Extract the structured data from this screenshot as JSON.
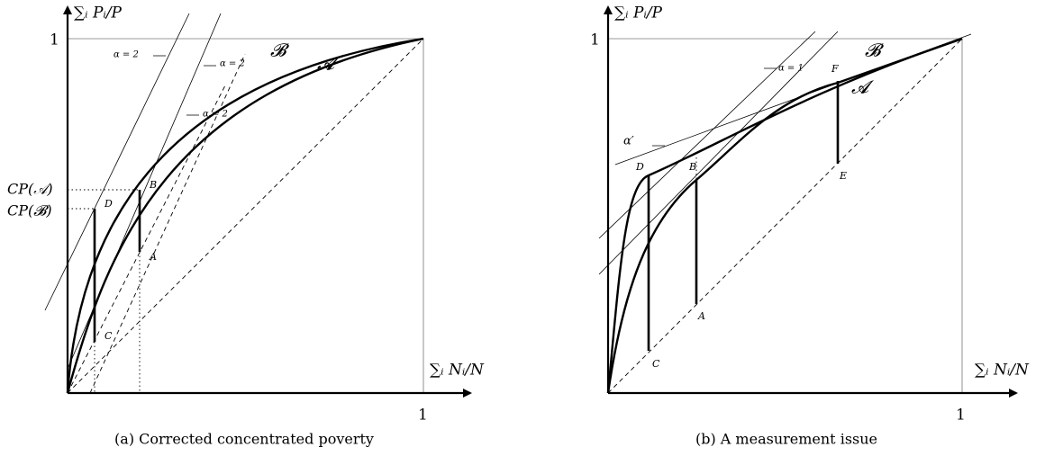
{
  "panels": [
    {
      "caption": "(a) Corrected concentrated poverty",
      "y_axis_label": "∑ᵢ Pᵢ/P",
      "x_axis_label": "∑ᵢ Nᵢ/N",
      "y_one": "1",
      "x_one": "1",
      "curve_labels": [
        "𝓑",
        "𝓐"
      ],
      "line_labels": [
        "α = 2",
        "α = 2",
        "α = 2"
      ],
      "level_labels": [
        "CP(𝒜)",
        "CP(𝓑)"
      ],
      "point_labels": [
        "D",
        "B",
        "A",
        "C"
      ]
    },
    {
      "caption": "(b) A measurement issue",
      "y_axis_label": "∑ᵢ Pᵢ/P",
      "x_axis_label": "∑ᵢ Nᵢ/N",
      "y_one": "1",
      "x_one": "1",
      "curve_labels": [
        "𝓑",
        "𝓐"
      ],
      "line_labels": [
        "α = 1",
        "α′"
      ],
      "point_labels": [
        "F",
        "D",
        "B",
        "E",
        "A",
        "C"
      ]
    }
  ]
}
